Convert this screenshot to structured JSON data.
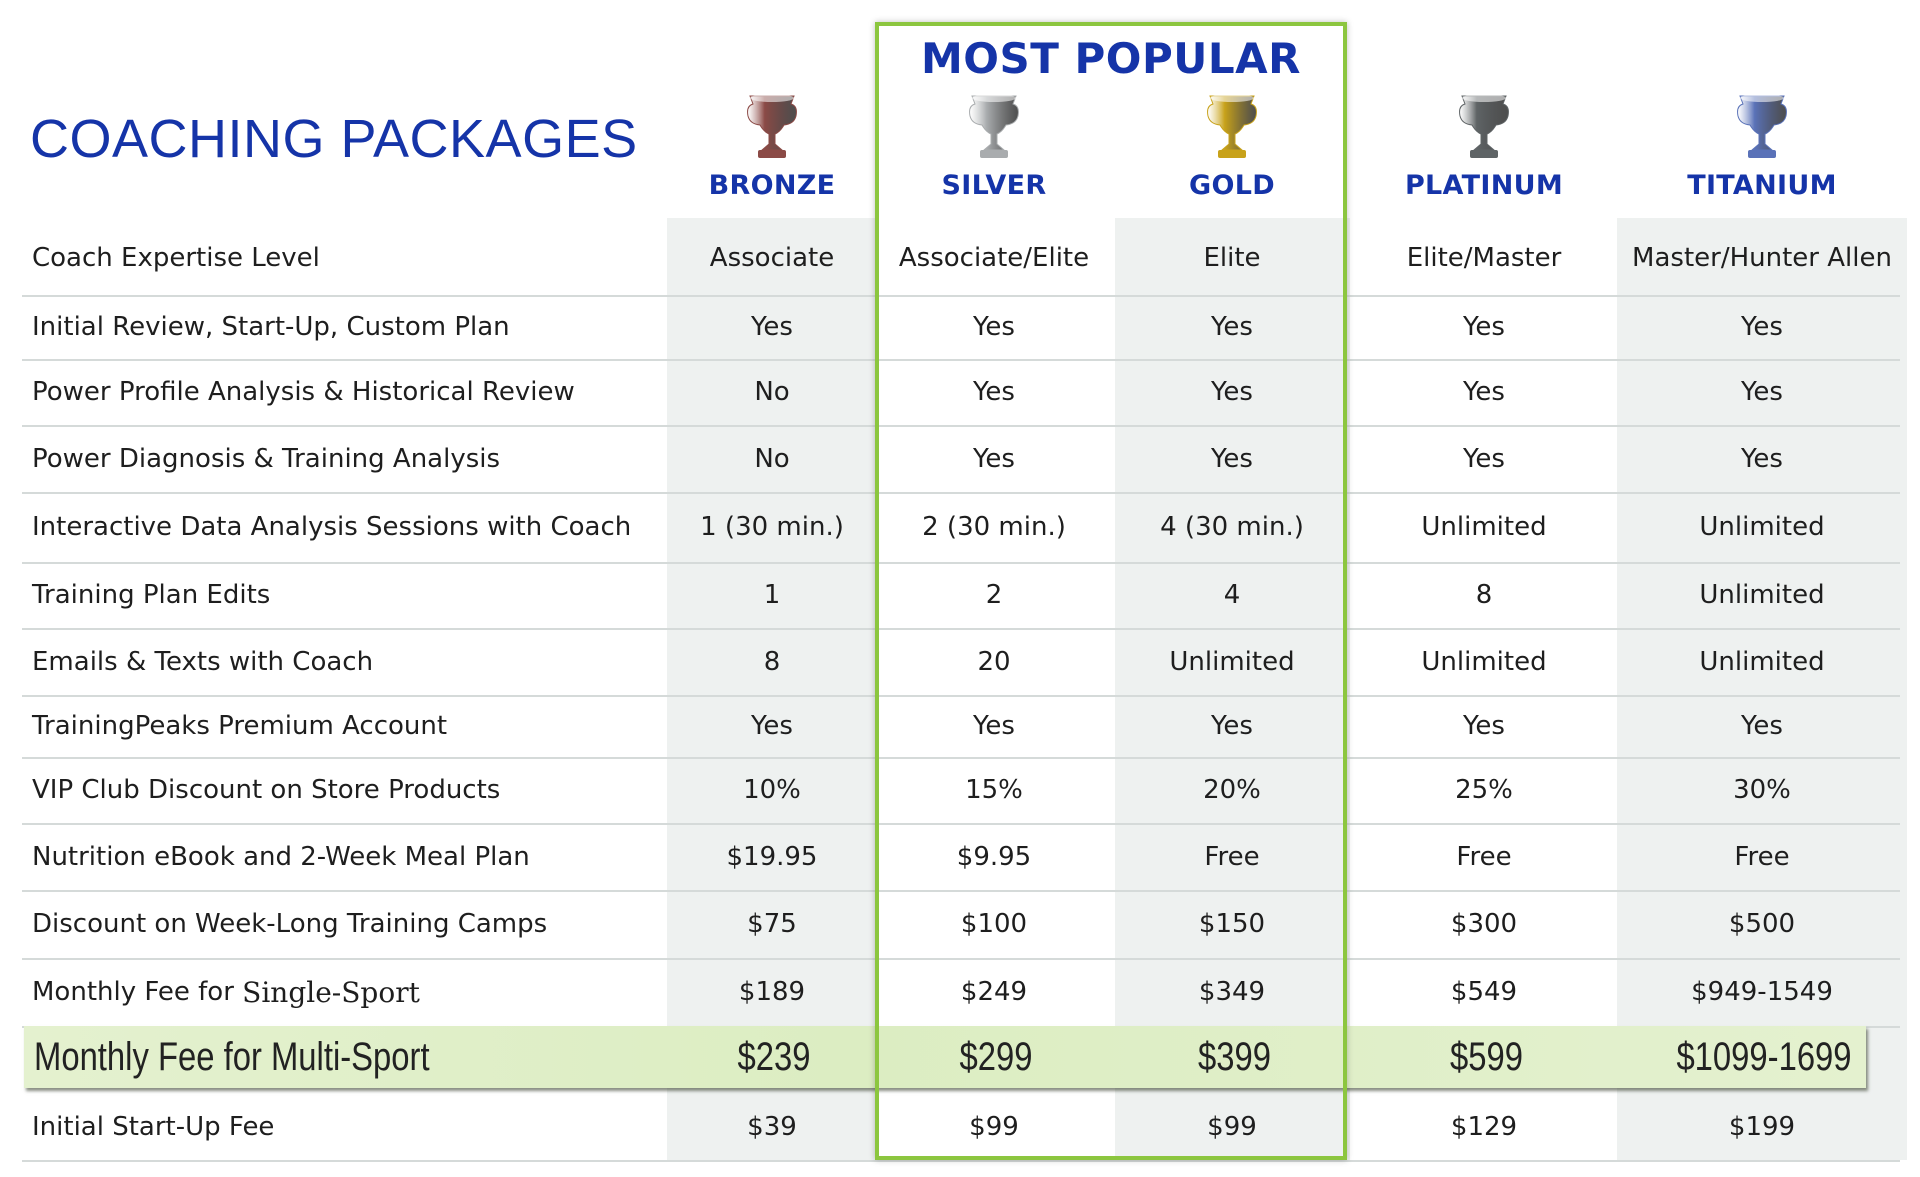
{
  "title": "COACHING PACKAGES",
  "most_popular": "MOST POPULAR",
  "tiers": [
    {
      "name": "BRONZE",
      "trophy": "trophy-bronze-icon",
      "color": "#8b4a46"
    },
    {
      "name": "SILVER",
      "trophy": "trophy-silver-icon",
      "color": "#a9acae"
    },
    {
      "name": "GOLD",
      "trophy": "trophy-gold-icon",
      "color": "#c8a21a"
    },
    {
      "name": "PLATINUM",
      "trophy": "trophy-platinum-icon",
      "color": "#5f6466"
    },
    {
      "name": "TITANIUM",
      "trophy": "trophy-titanium-icon",
      "color": "#5a72b8"
    }
  ],
  "rows": [
    {
      "label": "Coach Expertise Level",
      "values": [
        "Associate",
        "Associate/Elite",
        "Elite",
        "Elite/Master",
        "Master/Hunter Allen"
      ]
    },
    {
      "label": "Initial Review, Start-Up, Custom Plan",
      "values": [
        "Yes",
        "Yes",
        "Yes",
        "Yes",
        "Yes"
      ]
    },
    {
      "label": "Power Profile Analysis & Historical Review",
      "values": [
        "No",
        "Yes",
        "Yes",
        "Yes",
        "Yes"
      ]
    },
    {
      "label": "Power Diagnosis & Training Analysis",
      "values": [
        "No",
        "Yes",
        "Yes",
        "Yes",
        "Yes"
      ]
    },
    {
      "label": "Interactive Data Analysis Sessions with Coach",
      "values": [
        "1 (30 min.)",
        "2 (30 min.)",
        "4 (30 min.)",
        "Unlimited",
        "Unlimited"
      ]
    },
    {
      "label": "Training Plan Edits",
      "values": [
        "1",
        "2",
        "4",
        "8",
        "Unlimited"
      ]
    },
    {
      "label": "Emails & Texts with Coach",
      "values": [
        "8",
        "20",
        "Unlimited",
        "Unlimited",
        "Unlimited"
      ]
    },
    {
      "label": "TrainingPeaks Premium Account",
      "values": [
        "Yes",
        "Yes",
        "Yes",
        "Yes",
        "Yes"
      ]
    },
    {
      "label": "VIP Club Discount on Store Products",
      "values": [
        "10%",
        "15%",
        "20%",
        "25%",
        "30%"
      ]
    },
    {
      "label": "Nutrition eBook and 2-Week Meal Plan",
      "values": [
        "$19.95",
        "$9.95",
        "Free",
        "Free",
        "Free"
      ]
    },
    {
      "label": "Discount on Week-Long Training Camps",
      "values": [
        "$75",
        "$100",
        "$150",
        "$300",
        "$500"
      ]
    },
    {
      "label": "Monthly Fee for ",
      "label_extra": "Single-Sport",
      "values": [
        "$189",
        "$249",
        "$349",
        "$549",
        "$949-1549"
      ]
    },
    {
      "label": "Monthly Fee for Multi-Sport",
      "values": [
        "$239",
        "$299",
        "$399",
        "$599",
        "$1099-1699"
      ],
      "highlight": true
    },
    {
      "label": "Initial Start-Up Fee",
      "values": [
        "$39",
        "$99",
        "$99",
        "$129",
        "$199"
      ]
    }
  ]
}
